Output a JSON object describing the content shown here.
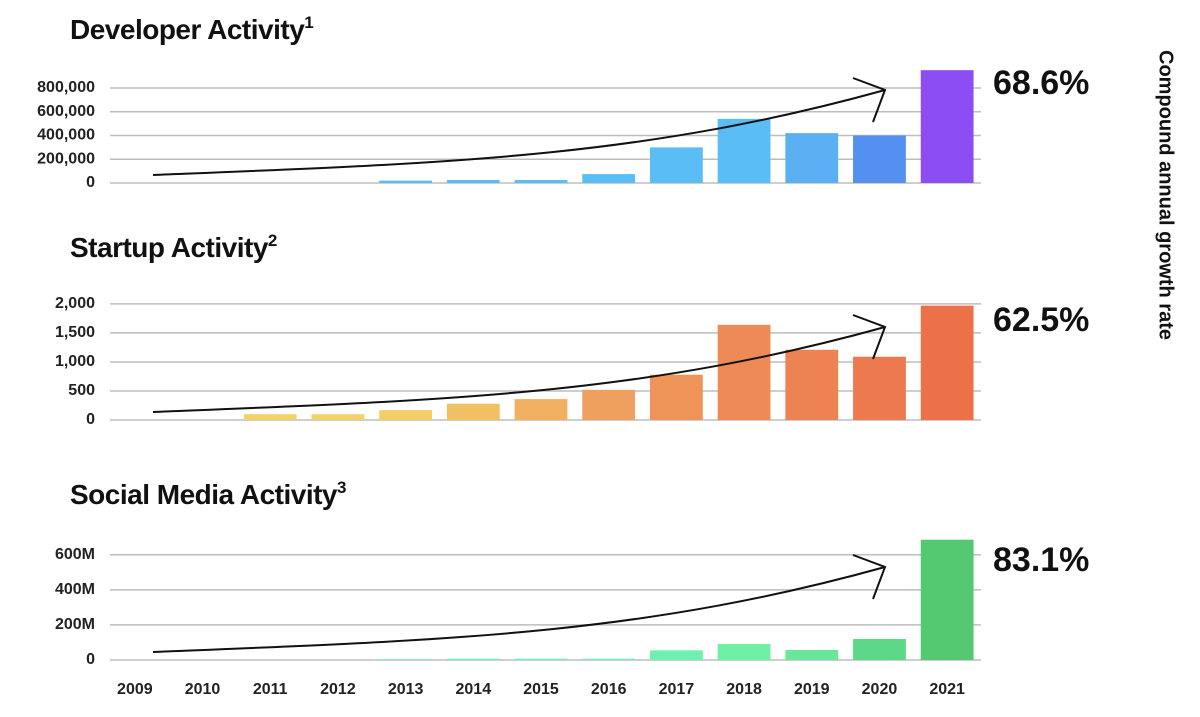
{
  "chart_data": [
    {
      "type": "bar",
      "title": "Developer Activity",
      "title_note": "1",
      "growth_label": "68.6%",
      "values": [
        0,
        0,
        0,
        0,
        20000,
        25000,
        25000,
        75000,
        300000,
        540000,
        420000,
        400000,
        950000
      ],
      "colors": [
        "#5bbdf5",
        "#5bbdf5",
        "#5bbdf5",
        "#5bbdf5",
        "#5bbdf5",
        "#5bbdf5",
        "#5bbdf5",
        "#5bbdf5",
        "#5bbdf5",
        "#5bbdf5",
        "#5ab0f2",
        "#5390f0",
        "#8b4cf2"
      ],
      "ylim": [
        0,
        960000
      ],
      "yticks": [
        0,
        {
          "value": 200000,
          "label": "200,000"
        },
        {
          "value": 400000,
          "label": "400,000"
        },
        {
          "value": 600000,
          "label": "600,000"
        },
        {
          "value": 800000,
          "label": "800,000"
        }
      ],
      "grid": true
    },
    {
      "type": "bar",
      "title": "Startup Activity",
      "title_note": "2",
      "growth_label": "62.5%",
      "values": [
        0,
        0,
        100,
        100,
        170,
        280,
        360,
        520,
        780,
        1640,
        1210,
        1090,
        1970
      ],
      "colors": [
        "#f2d36b",
        "#f2d36b",
        "#f2d36b",
        "#f2d36b",
        "#f2ce68",
        "#f0c062",
        "#f0b060",
        "#f0a05e",
        "#ee9458",
        "#ee8a55",
        "#ed8352",
        "#ec7a4e",
        "#ec7048"
      ],
      "ylim": [
        0,
        2050
      ],
      "yticks": [
        0,
        500,
        {
          "value": 1000,
          "label": "1,000"
        },
        {
          "value": 1500,
          "label": "1,500"
        },
        {
          "value": 2000,
          "label": "2,000"
        }
      ],
      "grid": true
    },
    {
      "type": "bar",
      "title": "Social Media Activity",
      "title_note": "3",
      "growth_label": "83.1%",
      "categories": [
        "2009",
        "2010",
        "2011",
        "2012",
        "2013",
        "2014",
        "2015",
        "2016",
        "2017",
        "2018",
        "2019",
        "2020",
        "2021"
      ],
      "values": [
        0,
        0,
        0,
        0,
        5,
        8,
        8,
        8,
        55,
        91,
        57,
        120,
        686
      ],
      "colors": [
        "#7eeccc",
        "#7eeccc",
        "#7eeccc",
        "#7eeccc",
        "#7eeccc",
        "#7eeccc",
        "#7eeccc",
        "#7eeccc",
        "#70f0b0",
        "#6ef0a5",
        "#6ae69a",
        "#5dd888",
        "#55c872"
      ],
      "ylim": [
        0,
        690
      ],
      "yticks": [
        0,
        {
          "value": 200,
          "label": "200M"
        },
        {
          "value": 400,
          "label": "400M"
        },
        {
          "value": 600,
          "label": "600M"
        }
      ],
      "grid": true
    }
  ],
  "side_label": "Compound annual growth rate"
}
